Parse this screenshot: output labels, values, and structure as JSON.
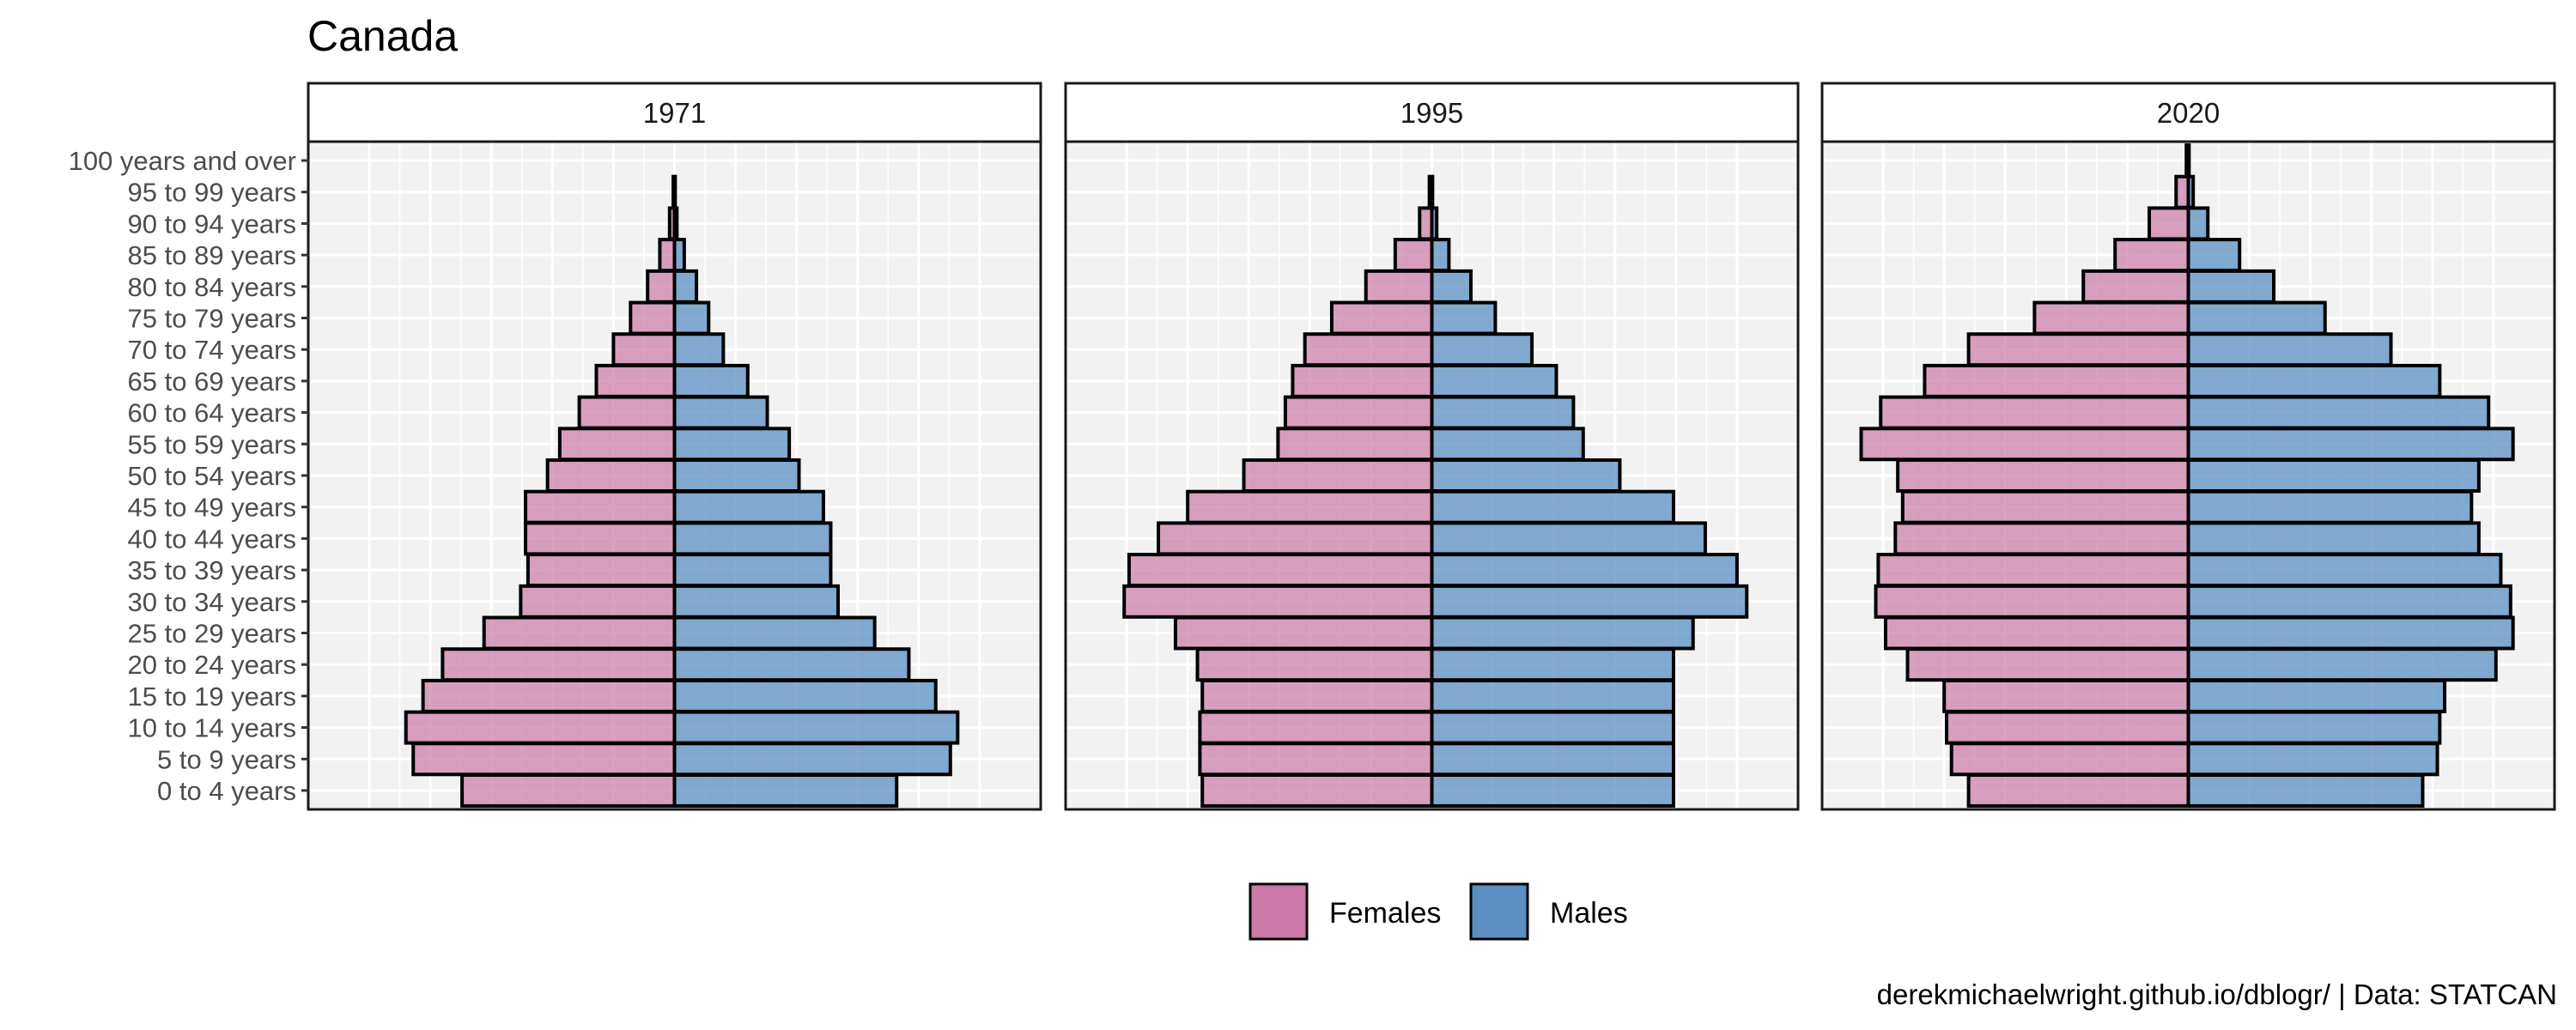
{
  "chart_data": {
    "type": "bar",
    "orientation": "horizontal",
    "title": "Canada",
    "caption": "derekmichaelwright.github.io/dblogr/ | Data: STATCAN",
    "categories": [
      "0 to 4 years",
      "5 to 9 years",
      "10 to 14 years",
      "15 to 19 years",
      "20 to 24 years",
      "25 to 29 years",
      "30 to 34 years",
      "35 to 39 years",
      "40 to 44 years",
      "45 to 49 years",
      "50 to 54 years",
      "55 to 59 years",
      "60 to 64 years",
      "65 to 69 years",
      "70 to 74 years",
      "75 to 79 years",
      "80 to 84 years",
      "85 to 89 years",
      "90 to 94 years",
      "95 to 99 years",
      "100 years and over"
    ],
    "legend": [
      {
        "name": "Females",
        "color": "#cc79a7"
      },
      {
        "name": "Males",
        "color": "#5b8fc2"
      }
    ],
    "legend_position": "bottom",
    "grid": true,
    "x_axis_labels_shown": false,
    "xlim": [
      -1.5,
      1.5
    ],
    "panels": [
      {
        "label": "1971",
        "series": [
          {
            "name": "Females",
            "values": [
              0.87,
              1.07,
              1.1,
              1.03,
              0.95,
              0.78,
              0.63,
              0.6,
              0.61,
              0.61,
              0.52,
              0.47,
              0.39,
              0.32,
              0.25,
              0.18,
              0.11,
              0.06,
              0.02,
              0.005,
              0.0
            ]
          },
          {
            "name": "Males",
            "values": [
              0.91,
              1.13,
              1.16,
              1.07,
              0.96,
              0.82,
              0.67,
              0.64,
              0.64,
              0.61,
              0.51,
              0.47,
              0.38,
              0.3,
              0.2,
              0.14,
              0.09,
              0.04,
              0.01,
              0.003,
              0.0
            ]
          }
        ]
      },
      {
        "label": "1995",
        "series": [
          {
            "name": "Females",
            "values": [
              0.94,
              0.95,
              0.95,
              0.94,
              0.96,
              1.05,
              1.26,
              1.24,
              1.12,
              1.0,
              0.77,
              0.63,
              0.6,
              0.57,
              0.52,
              0.41,
              0.27,
              0.15,
              0.05,
              0.01,
              0.0
            ]
          },
          {
            "name": "Males",
            "values": [
              0.99,
              0.99,
              0.99,
              0.99,
              0.99,
              1.07,
              1.29,
              1.25,
              1.12,
              0.99,
              0.77,
              0.62,
              0.58,
              0.51,
              0.41,
              0.26,
              0.16,
              0.07,
              0.02,
              0.003,
              0.0
            ]
          }
        ]
      },
      {
        "label": "2020",
        "series": [
          {
            "name": "Females",
            "values": [
              0.9,
              0.97,
              0.99,
              1.0,
              1.15,
              1.24,
              1.28,
              1.27,
              1.2,
              1.17,
              1.19,
              1.34,
              1.26,
              1.08,
              0.9,
              0.63,
              0.43,
              0.3,
              0.16,
              0.05,
              0.008
            ]
          },
          {
            "name": "Males",
            "values": [
              0.96,
              1.02,
              1.03,
              1.05,
              1.26,
              1.33,
              1.32,
              1.28,
              1.19,
              1.16,
              1.19,
              1.33,
              1.23,
              1.03,
              0.83,
              0.56,
              0.35,
              0.21,
              0.08,
              0.02,
              0.003
            ]
          }
        ]
      }
    ]
  }
}
